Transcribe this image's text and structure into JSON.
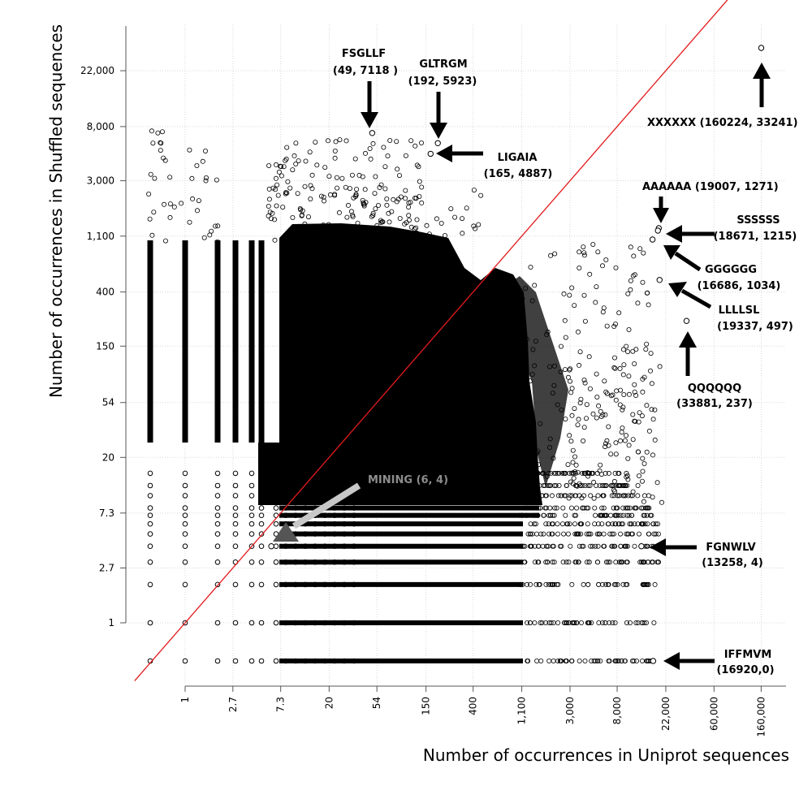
{
  "chart_data": {
    "type": "scatter",
    "scale": "log",
    "grid": true,
    "xlabel": "Number of occurrences in Uniprot sequences",
    "ylabel": "Number of occurrences in Shuffled sequences",
    "x_ticks": [
      "1",
      "2.7",
      "7.3",
      "20",
      "54",
      "150",
      "400",
      "1,100",
      "3,000",
      "8,000",
      "22,000",
      "60,000",
      "160,000"
    ],
    "y_ticks": [
      "1",
      "2.7",
      "7.3",
      "20",
      "54",
      "150",
      "400",
      "1,100",
      "3,000",
      "8,000",
      "22,000"
    ],
    "x_tick_values": [
      1,
      2.7,
      7.3,
      20,
      54,
      150,
      400,
      1100,
      3000,
      8000,
      22000,
      60000,
      160000
    ],
    "y_tick_values": [
      1,
      2.7,
      7.3,
      20,
      54,
      150,
      400,
      1100,
      3000,
      8000,
      22000
    ],
    "reference_line": "y = x",
    "reference_line_color": "#e41a1c",
    "marker_color": "#000000",
    "annotations": [
      {
        "id": "fsgllf",
        "name": "FSGLLF",
        "coords": "(49, 7118 )",
        "x": 49,
        "y": 7118
      },
      {
        "id": "gltrgm",
        "name": "GLTRGM",
        "coords": "(192, 5923)",
        "x": 192,
        "y": 5923
      },
      {
        "id": "ligaia",
        "name": "LIGAIA",
        "coords": "(165, 4887)",
        "x": 165,
        "y": 4887
      },
      {
        "id": "xxxxxx",
        "name": "XXXXXX",
        "label": "XXXXXX (160224,  33241)",
        "x": 160224,
        "y": 33241
      },
      {
        "id": "aaaaaa",
        "name": "AAAAAA",
        "label": "AAAAAA (19007, 1271)",
        "x": 19007,
        "y": 1271
      },
      {
        "id": "ssssss",
        "name": "SSSSSS",
        "coords": "(18671, 1215)",
        "x": 18671,
        "y": 1215
      },
      {
        "id": "gggggg",
        "name": "GGGGGG",
        "coords": "(16686, 1034)",
        "x": 16686,
        "y": 1034
      },
      {
        "id": "llllsl",
        "name": "LLLLSL",
        "coords": "(19337,  497)",
        "x": 19337,
        "y": 497
      },
      {
        "id": "qqqqqq",
        "name": "QQQQQQ",
        "coords": "(33881, 237)",
        "x": 33881,
        "y": 237
      },
      {
        "id": "mining",
        "name": "MINING",
        "label": "MINING (6, 4)",
        "x": 6,
        "y": 4
      },
      {
        "id": "fgnwlv",
        "name": "FGNWLV",
        "coords": "(13258, 4)",
        "x": 13258,
        "y": 4
      },
      {
        "id": "iffmvm",
        "name": "IFFMVM",
        "coords": "(16920,0)",
        "x": 16920,
        "y": 0
      }
    ]
  }
}
